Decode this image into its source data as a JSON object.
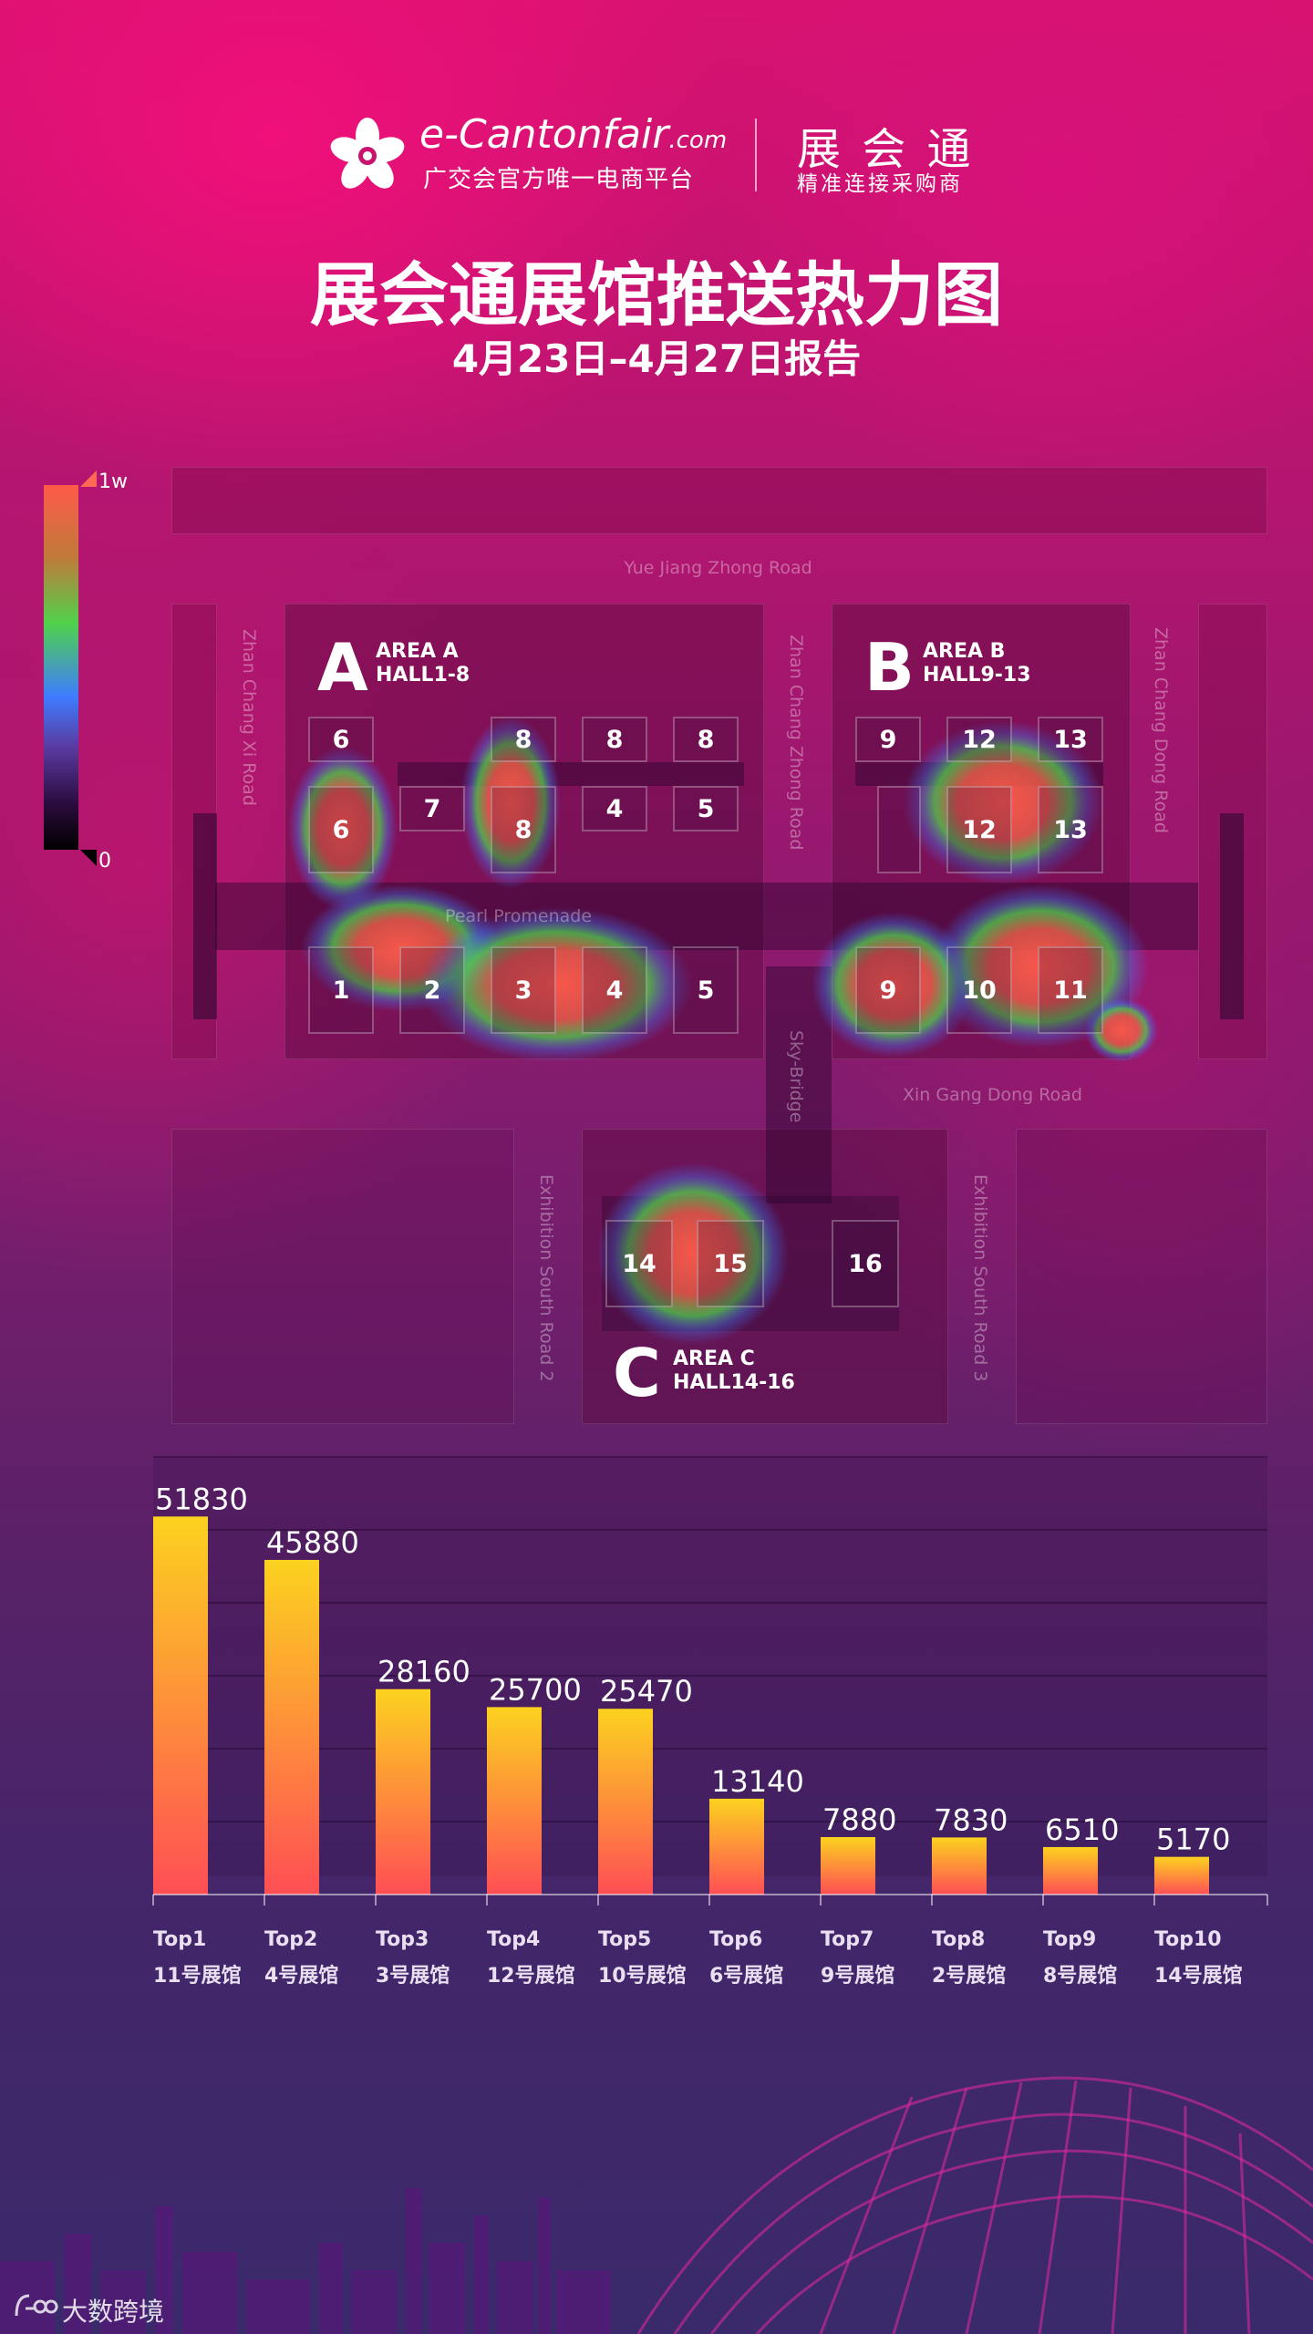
{
  "header": {
    "brand_name": "e-Cantonfair",
    "brand_domain": ".com",
    "brand_sub": "广交会官方唯一电商平台",
    "product_name": "展 会 通",
    "product_sub": "精准连接采购商",
    "title": "展会通展馆推送热力图",
    "subtitle": "4月23日–4月27日报告"
  },
  "legend": {
    "max_label": "1w",
    "min_label": "0",
    "colors": [
      "#ff5a4a",
      "#4fd24c",
      "#3f7cff",
      "#2a0a3a",
      "#000000"
    ]
  },
  "map": {
    "roads": {
      "top": "Yue Jiang Zhong Road",
      "west": "Zhan Chang Xi Road",
      "middle": "Zhan Chang Zhong Road",
      "east": "Zhan Chang Dong Road",
      "pearl": "Pearl Promenade",
      "skybridge": "Sky-Bridge",
      "xingang": "Xin Gang Dong Road",
      "south2": "Exhibition South Road 2",
      "south3": "Exhibition South Road 3"
    },
    "areas": {
      "a": {
        "letter": "A",
        "name": "AREA  A",
        "halls": "HALL1-8"
      },
      "b": {
        "letter": "B",
        "name": "AREA  B",
        "halls": "HALL9-13"
      },
      "c": {
        "letter": "C",
        "name": "AREA  C",
        "halls": "HALL14-16"
      }
    },
    "halls": [
      "6",
      "8",
      "8",
      "8",
      "6",
      "7",
      "8",
      "4",
      "5",
      "1",
      "2",
      "3",
      "4",
      "5",
      "9",
      "12",
      "13",
      "12",
      "13",
      "9",
      "10",
      "11",
      "14",
      "15",
      "16"
    ]
  },
  "chart_data": {
    "type": "bar",
    "categories": [
      "Top1",
      "Top2",
      "Top3",
      "Top4",
      "Top5",
      "Top6",
      "Top7",
      "Top8",
      "Top9",
      "Top10"
    ],
    "hall_names": [
      "11号展馆",
      "4号展馆",
      "3号展馆",
      "12号展馆",
      "10号展馆",
      "6号展馆",
      "9号展馆",
      "2号展馆",
      "8号展馆",
      "14号展馆"
    ],
    "values": [
      51830,
      45880,
      28160,
      25700,
      25470,
      13140,
      7880,
      7830,
      6510,
      5170
    ],
    "ylim": [
      0,
      60000
    ],
    "grid": true,
    "colors": {
      "bar_top": "#fcd21f",
      "bar_bottom": "#ff4e55"
    }
  },
  "watermark": "大数跨境"
}
